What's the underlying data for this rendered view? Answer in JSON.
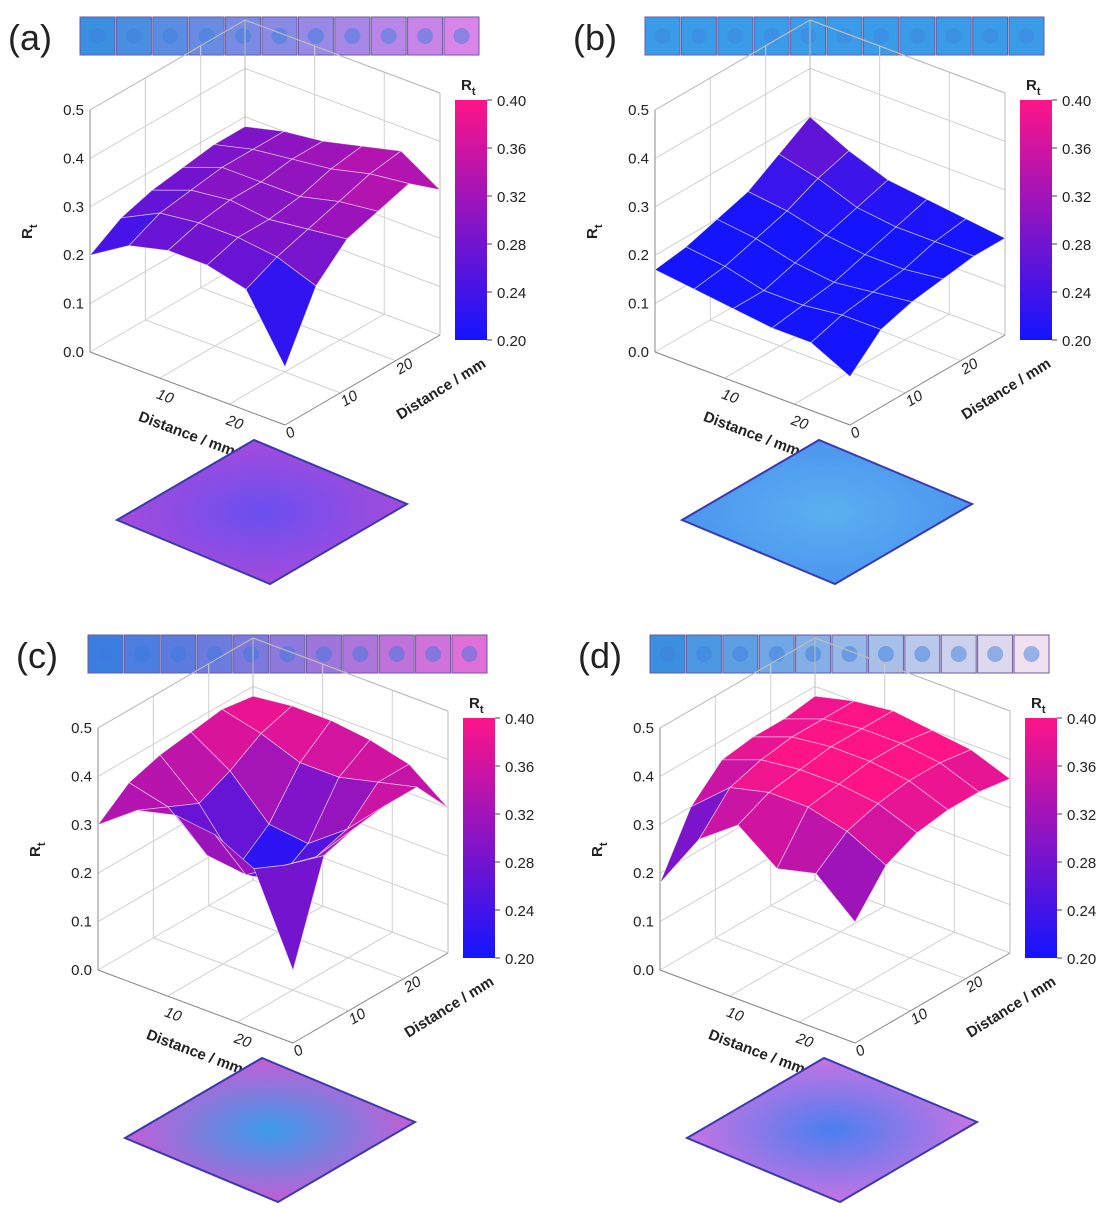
{
  "chart_data": [
    {
      "type": "surface3d",
      "panel_label": "(a)",
      "zlabel": "R",
      "zlabel_sub": "t",
      "xlabel": "Distance / mm",
      "ylabel": "Distance / mm",
      "xlim": [
        0,
        28
      ],
      "ylim": [
        0,
        28
      ],
      "zlim": [
        0,
        0.5
      ],
      "xticks": [
        10,
        20
      ],
      "yticks": [
        0,
        10,
        20
      ],
      "zticks": [
        {
          "value": 0,
          "label": "0.0"
        },
        0.1,
        0.2,
        0.3,
        0.4,
        0.5
      ],
      "grid_x": [
        0,
        5.6,
        11.2,
        16.8,
        22.4,
        28
      ],
      "grid_y": [
        0,
        5.6,
        11.2,
        16.8,
        22.4,
        28
      ],
      "z": [
        [
          0.2,
          0.25,
          0.27,
          0.27,
          0.25,
          0.12
        ],
        [
          0.24,
          0.28,
          0.29,
          0.29,
          0.28,
          0.25
        ],
        [
          0.26,
          0.29,
          0.3,
          0.29,
          0.3,
          0.31
        ],
        [
          0.27,
          0.3,
          0.3,
          0.3,
          0.32,
          0.33
        ],
        [
          0.28,
          0.3,
          0.31,
          0.32,
          0.34,
          0.35
        ],
        [
          0.28,
          0.3,
          0.31,
          0.33,
          0.35,
          0.3
        ]
      ],
      "colorbar_title": "R",
      "colorbar_title_sub": "t",
      "clim": [
        0.2,
        0.4
      ],
      "cticks": [
        {
          "value": 0.2,
          "label": "0.20"
        },
        0.24,
        0.28,
        0.32,
        0.36,
        {
          "value": 0.4,
          "label": "0.40"
        }
      ],
      "colormap": [
        "#1414ff",
        "#ff1488"
      ]
    },
    {
      "type": "surface3d",
      "panel_label": "(b)",
      "zlabel": "R",
      "zlabel_sub": "t",
      "xlabel": "Distance / mm",
      "ylabel": "Distance / mm",
      "xlim": [
        0,
        28
      ],
      "ylim": [
        0,
        28
      ],
      "zlim": [
        0,
        0.5
      ],
      "xticks": [
        10,
        20
      ],
      "yticks": [
        0,
        10,
        20
      ],
      "zticks": [
        {
          "value": 0,
          "label": "0.0"
        },
        0.1,
        0.2,
        0.3,
        0.4,
        0.5
      ],
      "grid_x": [
        0,
        5.6,
        11.2,
        16.8,
        22.4,
        28
      ],
      "grid_y": [
        0,
        5.6,
        11.2,
        16.8,
        22.4,
        28
      ],
      "z": [
        [
          0.17,
          0.16,
          0.15,
          0.14,
          0.14,
          0.1
        ],
        [
          0.18,
          0.17,
          0.15,
          0.15,
          0.16,
          0.16
        ],
        [
          0.2,
          0.19,
          0.17,
          0.16,
          0.17,
          0.18
        ],
        [
          0.22,
          0.21,
          0.19,
          0.18,
          0.18,
          0.19
        ],
        [
          0.26,
          0.24,
          0.21,
          0.2,
          0.2,
          0.2
        ],
        [
          0.3,
          0.26,
          0.23,
          0.22,
          0.21,
          0.2
        ]
      ],
      "colorbar_title": "R",
      "colorbar_title_sub": "t",
      "clim": [
        0.2,
        0.4
      ],
      "cticks": [
        {
          "value": 0.2,
          "label": "0.20"
        },
        0.24,
        0.28,
        0.32,
        0.36,
        {
          "value": 0.4,
          "label": "0.40"
        }
      ],
      "colormap": [
        "#1414ff",
        "#ff1488"
      ]
    },
    {
      "type": "surface3d",
      "panel_label": "(c)",
      "zlabel": "R",
      "zlabel_sub": "t",
      "xlabel": "Distance / mm",
      "ylabel": "Distance / mm",
      "xlim": [
        0,
        28
      ],
      "ylim": [
        0,
        28
      ],
      "zlim": [
        0,
        0.5
      ],
      "xticks": [
        10,
        20
      ],
      "yticks": [
        0,
        10,
        20
      ],
      "zticks": [
        {
          "value": 0,
          "label": "0.0"
        },
        0.1,
        0.2,
        0.3,
        0.4,
        0.5
      ],
      "grid_x": [
        0,
        5.6,
        11.2,
        16.8,
        22.4,
        28
      ],
      "grid_y": [
        0,
        5.6,
        11.2,
        16.8,
        22.4,
        28
      ],
      "z": [
        [
          0.3,
          0.36,
          0.38,
          0.37,
          0.33,
          0.15
        ],
        [
          0.35,
          0.33,
          0.26,
          0.25,
          0.3,
          0.35
        ],
        [
          0.37,
          0.3,
          0.2,
          0.2,
          0.28,
          0.37
        ],
        [
          0.38,
          0.33,
          0.25,
          0.24,
          0.3,
          0.38
        ],
        [
          0.39,
          0.37,
          0.34,
          0.34,
          0.36,
          0.38
        ],
        [
          0.38,
          0.39,
          0.39,
          0.38,
          0.36,
          0.3
        ]
      ],
      "colorbar_title": "R",
      "colorbar_title_sub": "t",
      "clim": [
        0.2,
        0.4
      ],
      "cticks": [
        {
          "value": 0.2,
          "label": "0.20"
        },
        0.24,
        0.28,
        0.32,
        0.36,
        {
          "value": 0.4,
          "label": "0.40"
        }
      ],
      "colormap": [
        "#1414ff",
        "#ff1488"
      ]
    },
    {
      "type": "surface3d",
      "panel_label": "(d)",
      "zlabel": "R",
      "zlabel_sub": "t",
      "xlabel": "Distance / mm",
      "ylabel": "Distance / mm",
      "xlim": [
        0,
        28
      ],
      "ylim": [
        0,
        28
      ],
      "zlim": [
        0,
        0.5
      ],
      "xticks": [
        10,
        20
      ],
      "yticks": [
        0,
        10,
        20
      ],
      "zticks": [
        {
          "value": 0,
          "label": "0.0"
        },
        0.1,
        0.2,
        0.3,
        0.4,
        0.5
      ],
      "grid_x": [
        0,
        5.6,
        11.2,
        16.8,
        22.4,
        28
      ],
      "grid_y": [
        0,
        5.6,
        11.2,
        16.8,
        22.4,
        28
      ],
      "z": [
        [
          0.18,
          0.3,
          0.36,
          0.3,
          0.32,
          0.25
        ],
        [
          0.3,
          0.37,
          0.39,
          0.39,
          0.37,
          0.33
        ],
        [
          0.36,
          0.39,
          0.4,
          0.4,
          0.39,
          0.36
        ],
        [
          0.37,
          0.4,
          0.41,
          0.41,
          0.4,
          0.37
        ],
        [
          0.37,
          0.4,
          0.41,
          0.41,
          0.4,
          0.37
        ],
        [
          0.38,
          0.4,
          0.41,
          0.4,
          0.39,
          0.36
        ]
      ],
      "colorbar_title": "R",
      "colorbar_title_sub": "t",
      "clim": [
        0.2,
        0.4
      ],
      "cticks": [
        {
          "value": 0.2,
          "label": "0.20"
        },
        0.24,
        0.28,
        0.32,
        0.36,
        {
          "value": 0.4,
          "label": "0.40"
        }
      ],
      "colormap": [
        "#1414ff",
        "#ff1488"
      ]
    }
  ]
}
